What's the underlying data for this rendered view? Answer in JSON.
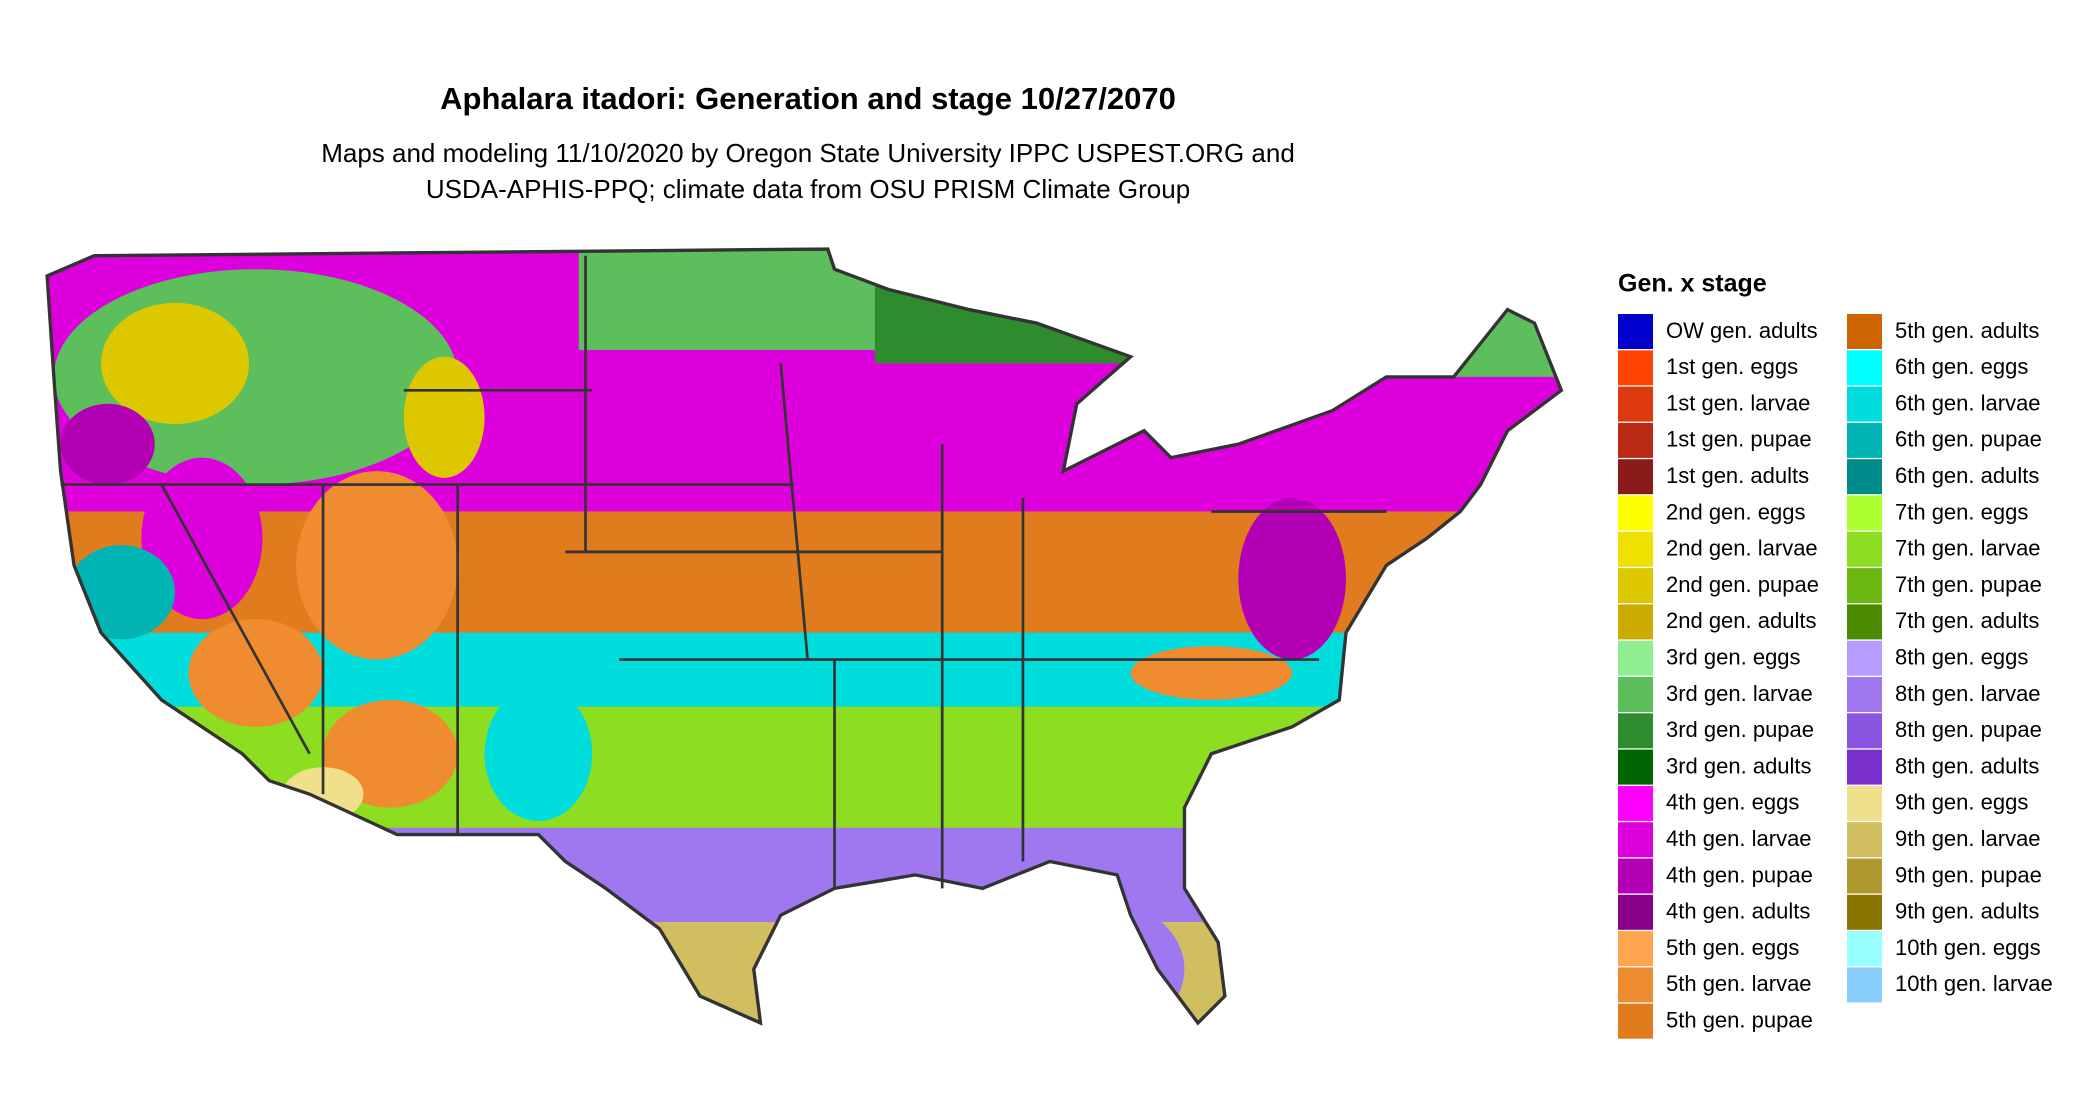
{
  "title": "Aphalara itadori: Generation and stage 10/27/2070",
  "subtitle": [
    "Maps and modeling 11/10/2020 by Oregon State University IPPC USPEST.ORG and",
    "USDA-APHIS-PPQ; climate data from OSU PRISM Climate Group"
  ],
  "legend": {
    "title": "Gen. x stage",
    "items": [
      {
        "label": "OW gen. adults",
        "color": "#0000cd"
      },
      {
        "label": "1st gen. eggs",
        "color": "#ff4500"
      },
      {
        "label": "1st gen. larvae",
        "color": "#dd3a10"
      },
      {
        "label": "1st gen. pupae",
        "color": "#b82a14"
      },
      {
        "label": "1st gen. adults",
        "color": "#8b1a1a"
      },
      {
        "label": "2nd gen. eggs",
        "color": "#ffff00"
      },
      {
        "label": "2nd gen. larvae",
        "color": "#eee000"
      },
      {
        "label": "2nd gen. pupae",
        "color": "#ddc800"
      },
      {
        "label": "2nd gen. adults",
        "color": "#ccaa00"
      },
      {
        "label": "3rd gen. eggs",
        "color": "#90ee90"
      },
      {
        "label": "3rd gen. larvae",
        "color": "#5cbf5c"
      },
      {
        "label": "3rd gen. pupae",
        "color": "#2e8b2e"
      },
      {
        "label": "3rd gen. adults",
        "color": "#006400"
      },
      {
        "label": "4th gen. eggs",
        "color": "#ff00ff"
      },
      {
        "label": "4th gen. larvae",
        "color": "#dd00dd"
      },
      {
        "label": "4th gen. pupae",
        "color": "#b400b4"
      },
      {
        "label": "4th gen. adults",
        "color": "#8b008b"
      },
      {
        "label": "5th gen. eggs",
        "color": "#ffa54f"
      },
      {
        "label": "5th gen. larvae",
        "color": "#f08c30"
      },
      {
        "label": "5th gen. pupae",
        "color": "#e07c1e"
      },
      {
        "label": "5th gen. adults",
        "color": "#cd6600"
      },
      {
        "label": "6th gen. eggs",
        "color": "#00ffff"
      },
      {
        "label": "6th gen. larvae",
        "color": "#00dddd"
      },
      {
        "label": "6th gen. pupae",
        "color": "#00b4b4"
      },
      {
        "label": "6th gen. adults",
        "color": "#008b8b"
      },
      {
        "label": "7th gen. eggs",
        "color": "#adff2f"
      },
      {
        "label": "7th gen. larvae",
        "color": "#8ddd20"
      },
      {
        "label": "7th gen. pupae",
        "color": "#6cb810"
      },
      {
        "label": "7th gen. adults",
        "color": "#4a8b00"
      },
      {
        "label": "8th gen. eggs",
        "color": "#b69cff"
      },
      {
        "label": "8th gen. larvae",
        "color": "#9f78f0"
      },
      {
        "label": "8th gen. pupae",
        "color": "#8a55e0"
      },
      {
        "label": "8th gen. adults",
        "color": "#7a30cc"
      },
      {
        "label": "9th gen. eggs",
        "color": "#f0e08c"
      },
      {
        "label": "9th gen. larvae",
        "color": "#d0be60"
      },
      {
        "label": "9th gen. pupae",
        "color": "#b09a30"
      },
      {
        "label": "9th gen. adults",
        "color": "#8b7500"
      },
      {
        "label": "10th gen. eggs",
        "color": "#97ffff"
      },
      {
        "label": "10th gen. larvae",
        "color": "#87cefa"
      }
    ]
  }
}
